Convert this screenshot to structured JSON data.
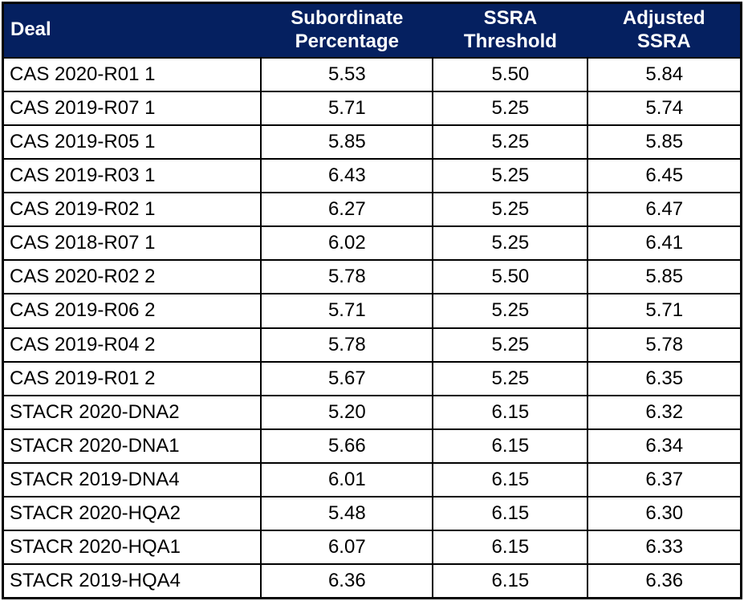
{
  "colors": {
    "header_bg": "#052060",
    "header_text": "#ffffff",
    "border": "#000000",
    "row_bg": "#ffffff"
  },
  "chart_data": {
    "type": "table",
    "title": "",
    "columns": [
      "Deal",
      "Subordinate Percentage",
      "SSRA Threshold",
      "Adjusted SSRA"
    ],
    "header_display": {
      "deal": "Deal",
      "subordinate_percentage": "Subordinate\nPercentage",
      "ssra_threshold": "SSRA\nThreshold",
      "adjusted_ssra": "Adjusted\nSSRA"
    },
    "rows": [
      [
        "CAS 2020-R01 1",
        "5.53",
        "5.50",
        "5.84"
      ],
      [
        "CAS 2019-R07 1",
        "5.71",
        "5.25",
        "5.74"
      ],
      [
        "CAS 2019-R05 1",
        "5.85",
        "5.25",
        "5.85"
      ],
      [
        "CAS 2019-R03 1",
        "6.43",
        "5.25",
        "6.45"
      ],
      [
        "CAS 2019-R02 1",
        "6.27",
        "5.25",
        "6.47"
      ],
      [
        "CAS 2018-R07 1",
        "6.02",
        "5.25",
        "6.41"
      ],
      [
        "CAS 2020-R02 2",
        "5.78",
        "5.50",
        "5.85"
      ],
      [
        "CAS 2019-R06 2",
        "5.71",
        "5.25",
        "5.71"
      ],
      [
        "CAS 2019-R04 2",
        "5.78",
        "5.25",
        "5.78"
      ],
      [
        "CAS 2019-R01 2",
        "5.67",
        "5.25",
        "6.35"
      ],
      [
        "STACR 2020-DNA2",
        "5.20",
        "6.15",
        "6.32"
      ],
      [
        "STACR 2020-DNA1",
        "5.66",
        "6.15",
        "6.34"
      ],
      [
        "STACR 2019-DNA4",
        "6.01",
        "6.15",
        "6.37"
      ],
      [
        "STACR 2020-HQA2",
        "5.48",
        "6.15",
        "6.30"
      ],
      [
        "STACR 2020-HQA1",
        "6.07",
        "6.15",
        "6.33"
      ],
      [
        "STACR 2019-HQA4",
        "6.36",
        "6.15",
        "6.36"
      ]
    ]
  }
}
